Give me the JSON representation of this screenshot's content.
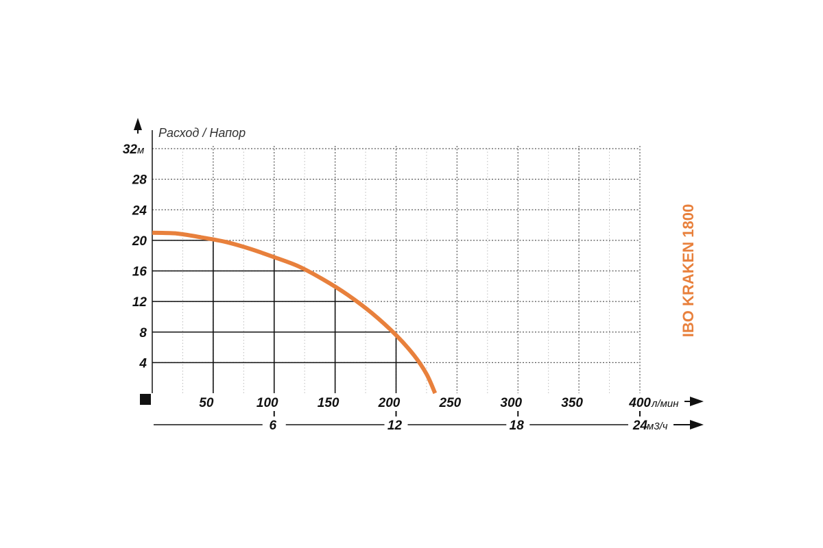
{
  "chart_data": {
    "type": "line",
    "title": "IBO KRAKEN 1800",
    "ylabel": "Расход / Напор",
    "ylabel_unit": "м",
    "xlabel_unit": "л/мин",
    "x2label_unit": "м3/ч",
    "xlim": [
      0,
      400
    ],
    "ylim": [
      0,
      32
    ],
    "x_ticks": [
      50,
      100,
      150,
      200,
      250,
      300,
      350,
      400
    ],
    "y_ticks": [
      4,
      8,
      12,
      16,
      20,
      24,
      28,
      32
    ],
    "x2_ticks": [
      6,
      12,
      18,
      24
    ],
    "x2_to_x_factor": 16.6667,
    "grid": true,
    "legend": "none",
    "series": [
      {
        "color": "#E8803C",
        "x": [
          0,
          20,
          40,
          60,
          80,
          100,
          120,
          140,
          160,
          180,
          200,
          215,
          225,
          232
        ],
        "y": [
          21,
          20.9,
          20.4,
          19.8,
          18.9,
          17.8,
          16.6,
          14.9,
          12.9,
          10.5,
          7.6,
          4.9,
          2.5,
          0
        ]
      }
    ],
    "operating_points": [
      {
        "x": 50,
        "y": 20
      },
      {
        "x": 100,
        "y": 18
      },
      {
        "x": 150,
        "y": 14
      },
      {
        "x": 200,
        "y": 7.6
      }
    ],
    "horizontal_refs": [
      {
        "y": 20,
        "to_x": 50
      },
      {
        "y": 16,
        "to_x": 125
      },
      {
        "y": 12,
        "to_x": 165
      },
      {
        "y": 8,
        "to_x": 198
      },
      {
        "y": 4,
        "to_x": 220
      }
    ]
  }
}
